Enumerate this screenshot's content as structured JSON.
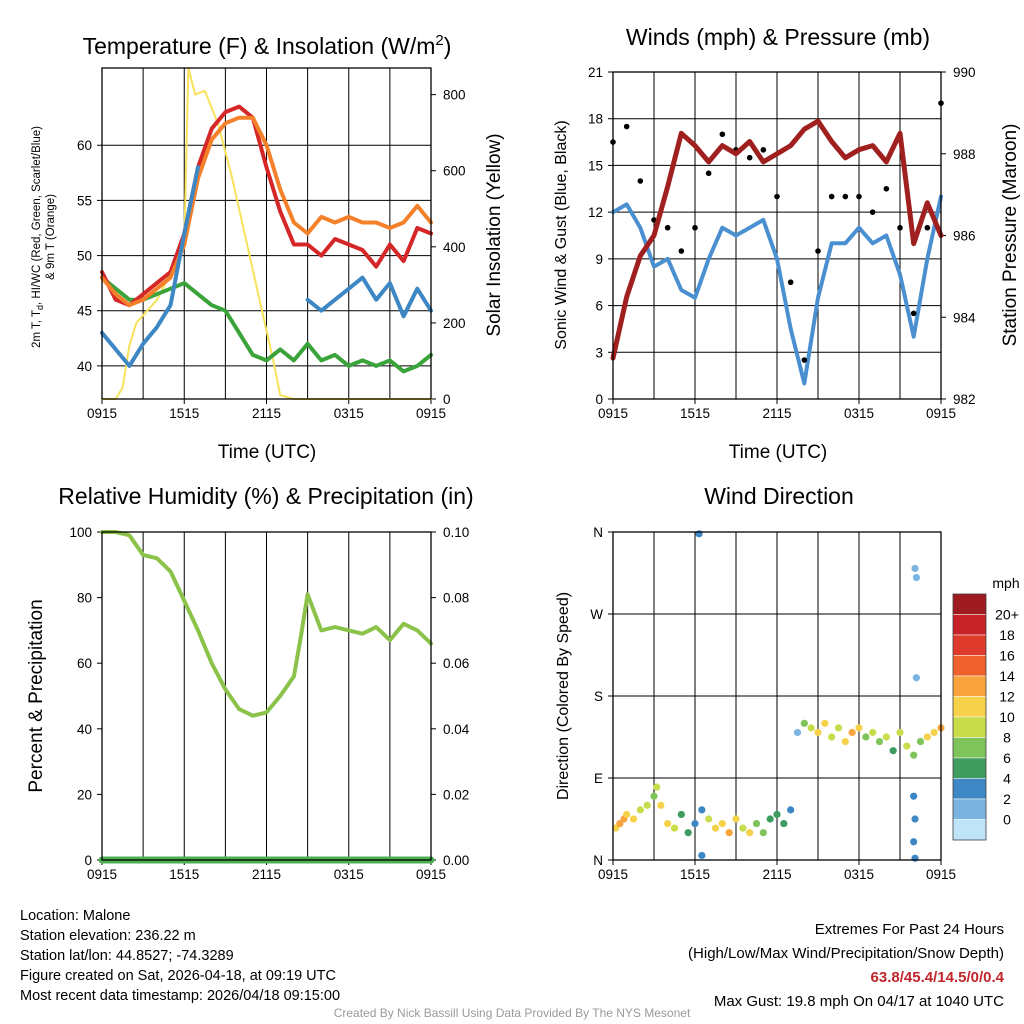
{
  "x_ticks": [
    "0915",
    "1515",
    "2115",
    "0315",
    "0915"
  ],
  "panels": {
    "temp": {
      "title": "Temperature (F) & Insolation (W/m",
      "title_sup": "2",
      "title_end": ")",
      "xlabel": "Time (UTC)",
      "ylabel_line1": "2m T, T",
      "ylabel_sub": "d",
      "ylabel_line1b": ", HI/WC (Red, Green, Scarlet/Blue)",
      "ylabel_line2": "& 9m T (Orange)",
      "y2label": "Solar Insolation (Yellow)"
    },
    "wind": {
      "title": "Winds (mph) & Pressure (mb)",
      "xlabel": "Time (UTC)",
      "ylabel": "Sonic Wind & Gust (Blue, Black)",
      "y2label": "Station Pressure (Maroon)"
    },
    "rh": {
      "title": "Relative Humidity (%) & Precipitation (in)",
      "ylabel": "Percent & Precipitation"
    },
    "dir": {
      "title": "Wind Direction",
      "ylabel": "Direction (Colored By Speed)",
      "colorbar_title": "mph",
      "colorbar_labels": [
        "20+",
        "18",
        "16",
        "14",
        "12",
        "10",
        "8",
        "6",
        "4",
        "2",
        "0"
      ],
      "colorbar_colors": [
        "#9e1b1f",
        "#c62228",
        "#de3b2d",
        "#f0602d",
        "#f8a33d",
        "#f6d24a",
        "#c9dc4b",
        "#7fc45a",
        "#3e9c5e",
        "#3d87c4",
        "#7bb4e0",
        "#bfe3f7"
      ]
    }
  },
  "info": {
    "location": "Location: Malone",
    "elevation": "Station elevation: 236.22 m",
    "latlon": "Station lat/lon: 44.8527; -74.3289",
    "created": "Figure created on Sat, 2026-04-18, at 09:19 UTC",
    "recent": "Most recent data timestamp: 2026/04/18 09:15:00",
    "extremes_title": "Extremes For Past 24 Hours",
    "extremes_desc": "(High/Low/Max Wind/Precipitation/Snow Depth)",
    "extremes_values": "63.8/45.4/14.5/0/0.4",
    "max_gust": "Max Gust: 19.8 mph On 04/17 at 1040 UTC",
    "credit": "Created By Nick Bassill Using Data Provided By The NYS Mesonet"
  },
  "chart_data": [
    {
      "type": "line",
      "title": "Temperature (F) & Insolation (W/m2)",
      "xlabel": "Time (UTC)",
      "ylabel": "2m T, Td, HI/WC (Red, Green, Scarlet/Blue) & 9m T (Orange)",
      "y2label": "Solar Insolation (Yellow)",
      "ylim": [
        37,
        67
      ],
      "yticks": [
        40,
        45,
        50,
        55,
        60
      ],
      "y2lim": [
        0,
        870
      ],
      "y2ticks": [
        0,
        200,
        400,
        600,
        800
      ],
      "xlim": [
        0,
        24
      ],
      "xticks": [
        "0915",
        "1515",
        "2115",
        "0315",
        "0915"
      ],
      "series": [
        {
          "name": "2m T",
          "color": "#d62728",
          "axis": "left",
          "x": [
            0,
            1,
            2,
            3,
            4,
            5,
            6,
            7,
            8,
            9,
            10,
            11,
            12,
            13,
            14,
            15,
            16,
            17,
            18,
            19,
            20,
            21,
            22,
            23,
            24
          ],
          "y": [
            48.5,
            46,
            45.5,
            46.5,
            47.5,
            48.5,
            52,
            58,
            61.5,
            63,
            63.5,
            62.5,
            58,
            54,
            51,
            51,
            50,
            51.5,
            51,
            50.5,
            49,
            51,
            49.5,
            52.5,
            52
          ]
        },
        {
          "name": "9m T",
          "color": "#f4802a",
          "axis": "left",
          "x": [
            0,
            1,
            2,
            3,
            4,
            5,
            6,
            7,
            8,
            9,
            10,
            11,
            12,
            13,
            14,
            15,
            16,
            17,
            18,
            19,
            20,
            21,
            22,
            23,
            24
          ],
          "y": [
            48,
            46.5,
            45.5,
            46,
            47,
            48,
            51,
            57,
            60.5,
            62,
            62.5,
            62.5,
            60,
            56,
            53,
            52,
            53.5,
            53,
            53.5,
            53,
            53,
            52.5,
            53,
            54.5,
            53
          ]
        },
        {
          "name": "HI/WC",
          "color": "#3d87c4",
          "axis": "left",
          "x": [
            0,
            1,
            2,
            3,
            4,
            5,
            6,
            7,
            8,
            9,
            10,
            11,
            12,
            13,
            14,
            15,
            16,
            17,
            18,
            19,
            20,
            21,
            22,
            23,
            24
          ],
          "y": [
            43,
            41.5,
            40,
            42,
            43.5,
            45.5,
            52,
            58,
            null,
            null,
            null,
            null,
            null,
            null,
            null,
            46,
            45,
            46,
            47,
            48,
            46,
            47.5,
            44.5,
            47,
            45
          ]
        },
        {
          "name": "Td",
          "color": "#3aa33a",
          "axis": "left",
          "x": [
            0,
            1,
            2,
            3,
            4,
            5,
            6,
            7,
            8,
            9,
            10,
            11,
            12,
            13,
            14,
            15,
            16,
            17,
            18,
            19,
            20,
            21,
            22,
            23,
            24
          ],
          "y": [
            48,
            47,
            46,
            46,
            46.5,
            47,
            47.5,
            46.5,
            45.5,
            45,
            43,
            41,
            40.5,
            41.5,
            40.5,
            42,
            40.5,
            41,
            40,
            40.5,
            40,
            40.5,
            39.5,
            40,
            41
          ]
        },
        {
          "name": "Solar Insolation",
          "color": "#f7e25a",
          "axis": "right",
          "x": [
            0,
            1,
            1.5,
            2,
            2.5,
            3,
            4,
            5,
            6,
            6.3,
            6.8,
            7.5,
            8.5,
            9.5,
            10.5,
            11.5,
            12.5,
            13,
            14,
            24
          ],
          "y": [
            0,
            0,
            30,
            140,
            200,
            220,
            260,
            330,
            420,
            870,
            800,
            810,
            720,
            580,
            420,
            260,
            100,
            10,
            0,
            0
          ]
        }
      ]
    },
    {
      "type": "line",
      "title": "Winds (mph) & Pressure (mb)",
      "xlabel": "Time (UTC)",
      "ylabel": "Sonic Wind & Gust (Blue, Black)",
      "y2label": "Station Pressure (Maroon)",
      "ylim": [
        0,
        21
      ],
      "yticks": [
        0,
        3,
        6,
        9,
        12,
        15,
        18,
        21
      ],
      "y2lim": [
        982,
        990
      ],
      "y2ticks": [
        982,
        984,
        986,
        988,
        990
      ],
      "xlim": [
        0,
        24
      ],
      "xticks": [
        "0915",
        "1515",
        "2115",
        "0315",
        "0915"
      ],
      "series": [
        {
          "name": "Sonic Wind",
          "color": "#4a8fcf",
          "axis": "left",
          "x": [
            0,
            1,
            2,
            3,
            4,
            5,
            6,
            7,
            8,
            9,
            10,
            11,
            12,
            13,
            14,
            15,
            16,
            17,
            18,
            19,
            20,
            21,
            22,
            23,
            24
          ],
          "y": [
            12,
            12.5,
            11,
            8.5,
            9,
            7,
            6.5,
            9,
            11,
            10.5,
            11,
            11.5,
            9,
            4.5,
            1,
            6.5,
            10,
            10,
            11,
            10,
            10.5,
            8,
            4,
            9,
            13
          ]
        },
        {
          "name": "Gust",
          "color": "#000000",
          "axis": "left",
          "x": [
            0,
            1,
            2,
            3,
            4,
            5,
            6,
            7,
            8,
            9,
            10,
            11,
            12,
            13,
            14,
            15,
            16,
            17,
            18,
            19,
            20,
            21,
            22,
            23,
            24
          ],
          "y": [
            16.5,
            17.5,
            14,
            11.5,
            11,
            9.5,
            11,
            14.5,
            17,
            16,
            15.5,
            16,
            13,
            7.5,
            2.5,
            9.5,
            13,
            13,
            13,
            12,
            13.5,
            11,
            5.5,
            11,
            19
          ]
        },
        {
          "name": "Station Pressure",
          "color": "#a0201f",
          "axis": "right",
          "x": [
            0,
            1,
            2,
            3,
            4,
            5,
            6,
            7,
            8,
            9,
            10,
            11,
            12,
            13,
            14,
            15,
            16,
            17,
            18,
            19,
            20,
            21,
            22,
            23,
            24
          ],
          "y": [
            983,
            984.5,
            985.5,
            986,
            987.2,
            988.5,
            988.2,
            987.8,
            988.2,
            988,
            988.3,
            987.8,
            988,
            988.2,
            988.6,
            988.8,
            988.3,
            987.9,
            988.1,
            988.2,
            987.8,
            988.5,
            985.8,
            986.8,
            986
          ]
        }
      ]
    },
    {
      "type": "line",
      "title": "Relative Humidity (%) & Precipitation (in)",
      "ylabel": "Percent & Precipitation",
      "ylim": [
        0,
        100
      ],
      "yticks": [
        0,
        20,
        40,
        60,
        80,
        100
      ],
      "y2lim": [
        0,
        0.1
      ],
      "y2ticks": [
        "0.00",
        "0.02",
        "0.04",
        "0.06",
        "0.08",
        "0.10"
      ],
      "xlim": [
        0,
        24
      ],
      "xticks": [
        "0915",
        "1515",
        "2115",
        "0315",
        "0915"
      ],
      "series": [
        {
          "name": "Relative Humidity",
          "color": "#8bc34a",
          "axis": "left",
          "x": [
            0,
            1,
            2,
            3,
            4,
            5,
            6,
            7,
            8,
            9,
            10,
            11,
            12,
            13,
            14,
            14.5,
            15,
            16,
            17,
            18,
            19,
            20,
            21,
            22,
            23,
            24
          ],
          "y": [
            100,
            100,
            99,
            93,
            92,
            88,
            79,
            70,
            60,
            52,
            46,
            44,
            45,
            50,
            56,
            68,
            81,
            70,
            71,
            70,
            69,
            71,
            67,
            72,
            70,
            66
          ]
        },
        {
          "name": "Precipitation",
          "color": "#4caf50",
          "axis": "right",
          "x": [
            0,
            24
          ],
          "y": [
            0,
            0
          ]
        }
      ]
    },
    {
      "type": "scatter",
      "title": "Wind Direction",
      "ylabel": "Direction (Colored By Speed)",
      "yticks": [
        "N",
        "E",
        "S",
        "W",
        "N"
      ],
      "ylim": [
        0,
        360
      ],
      "xlim": [
        0,
        24
      ],
      "xticks": [
        "0915",
        "1515",
        "2115",
        "0315",
        "0915"
      ],
      "colorbar": {
        "title": "mph",
        "labels": [
          "20+",
          "18",
          "16",
          "14",
          "12",
          "10",
          "8",
          "6",
          "4",
          "2",
          "0"
        ]
      },
      "points_direction_deg": [
        [
          0.2,
          35,
          12
        ],
        [
          0.5,
          40,
          13
        ],
        [
          0.8,
          45,
          14
        ],
        [
          1,
          50,
          11
        ],
        [
          1.5,
          45,
          12
        ],
        [
          2,
          55,
          10
        ],
        [
          2.5,
          60,
          9
        ],
        [
          3,
          70,
          8
        ],
        [
          3.2,
          80,
          9
        ],
        [
          3.5,
          60,
          11
        ],
        [
          4,
          40,
          12
        ],
        [
          4.5,
          35,
          10
        ],
        [
          5,
          50,
          6
        ],
        [
          5.5,
          30,
          5
        ],
        [
          6,
          40,
          4
        ],
        [
          6.5,
          55,
          3
        ],
        [
          7,
          45,
          10
        ],
        [
          7.5,
          35,
          12
        ],
        [
          8,
          40,
          11
        ],
        [
          8.5,
          30,
          13
        ],
        [
          9,
          45,
          12
        ],
        [
          9.5,
          35,
          10
        ],
        [
          10,
          30,
          11
        ],
        [
          10.5,
          40,
          8
        ],
        [
          11,
          30,
          7
        ],
        [
          11.5,
          45,
          6
        ],
        [
          12,
          50,
          5
        ],
        [
          12.5,
          40,
          6
        ],
        [
          13,
          55,
          3
        ],
        [
          13.5,
          140,
          2
        ],
        [
          14,
          150,
          8
        ],
        [
          14.5,
          145,
          10
        ],
        [
          15,
          140,
          12
        ],
        [
          15.5,
          150,
          11
        ],
        [
          16,
          135,
          9
        ],
        [
          16.5,
          145,
          10
        ],
        [
          17,
          130,
          12
        ],
        [
          17.5,
          140,
          13
        ],
        [
          18,
          145,
          12
        ],
        [
          18.5,
          135,
          8
        ],
        [
          19,
          140,
          10
        ],
        [
          19.5,
          130,
          7
        ],
        [
          20,
          135,
          9
        ],
        [
          20.5,
          120,
          6
        ],
        [
          21,
          140,
          10
        ],
        [
          21.5,
          125,
          9
        ],
        [
          22,
          115,
          7
        ],
        [
          22.5,
          130,
          8
        ],
        [
          23,
          135,
          11
        ],
        [
          23.5,
          140,
          12
        ],
        [
          24,
          145,
          13
        ],
        [
          6.3,
          358,
          4
        ],
        [
          22.1,
          320,
          2
        ],
        [
          22.2,
          310,
          2
        ],
        [
          22.2,
          200,
          2
        ],
        [
          22.0,
          70,
          3
        ],
        [
          22.1,
          45,
          4
        ],
        [
          22.0,
          20,
          3
        ],
        [
          22.1,
          2,
          4
        ],
        [
          6.5,
          5,
          4
        ]
      ]
    }
  ]
}
